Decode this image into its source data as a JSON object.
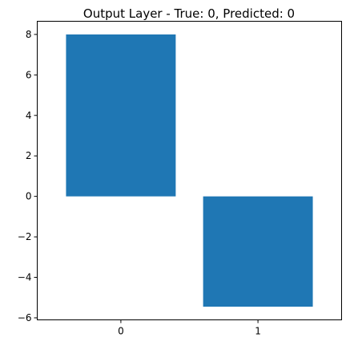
{
  "chart_data": {
    "type": "bar",
    "title": "Output Layer - True: 0, Predicted: 0",
    "categories": [
      "0",
      "1"
    ],
    "values": [
      8.0,
      -5.45
    ],
    "xlabel": "",
    "ylabel": "",
    "ylim": [
      -6.1,
      8.65
    ],
    "yticks": [
      8,
      6,
      4,
      2,
      0,
      -2,
      -4,
      -6
    ],
    "ytick_labels": [
      "8",
      "6",
      "4",
      "2",
      "0",
      "−2",
      "−4",
      "−6"
    ],
    "bar_color": "#1f77b4",
    "grid": false,
    "legend": "none"
  }
}
